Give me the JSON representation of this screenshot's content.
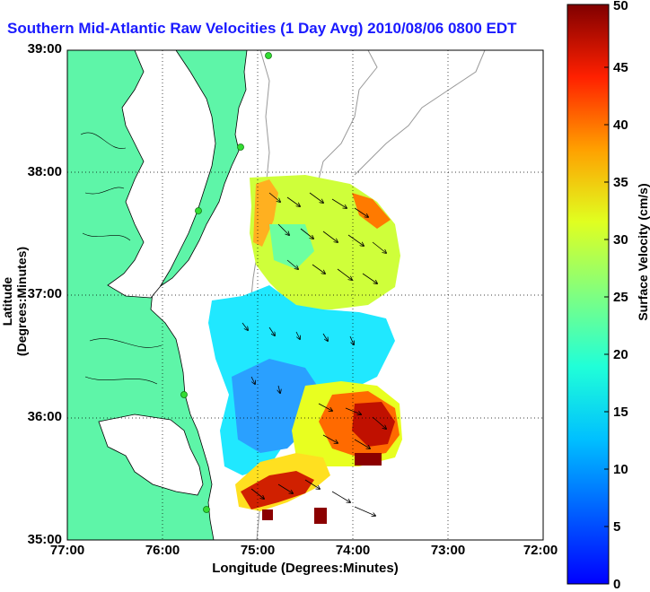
{
  "title": "Southern Mid-Atlantic Raw Velocities (1 Day Avg) 2010/08/06 0800 EDT",
  "axes": {
    "xlabel": "Longitude (Degrees:Minutes)",
    "ylabel": "Latitude (Degrees:Minutes)",
    "x_ticks": [
      "77:00",
      "76:00",
      "75:00",
      "74:00",
      "73:00",
      "72:00"
    ],
    "y_ticks": [
      "39:00",
      "38:00",
      "37:00",
      "36:00",
      "35:00"
    ],
    "grid": "dotted"
  },
  "colorbar": {
    "label": "Surface Velocity (cm/s)",
    "min": 0,
    "max": 50,
    "ticks": [
      "0",
      "5",
      "10",
      "15",
      "20",
      "25",
      "30",
      "35",
      "40",
      "45",
      "50"
    ],
    "colormap": "jet"
  },
  "colors": {
    "land": "#5ef5a8",
    "coastline": "#000000",
    "bathymetry": "#999999",
    "stations": "#33dd33",
    "title": "#1a1aff"
  }
}
